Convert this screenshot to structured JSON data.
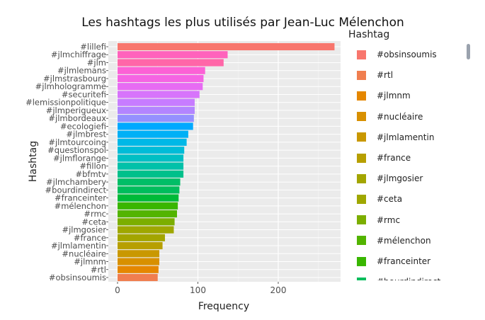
{
  "chart_data": {
    "type": "bar",
    "orientation": "horizontal",
    "title": "Les hashtags les plus utilisés par Jean-Luc Mélenchon",
    "xlabel": "Frequency",
    "ylabel": "Hashtag",
    "xlim": [
      0,
      280
    ],
    "x_ticks": [
      0,
      100,
      200
    ],
    "grid": true,
    "legend_position": "right",
    "legend_title": "Hashtag",
    "categories": [
      "#lillefi",
      "#jlmchiffrage",
      "#jlm",
      "#jlmlemans",
      "#jlmstrasbourg",
      "#jlmhologramme",
      "#securitefi",
      "#lemissionpolitique",
      "#jlmperigueux",
      "#jlmbordeaux",
      "#ecologiefi",
      "#jlmbrest",
      "#jlmtourcoing",
      "#questionspol",
      "#jlmflorange",
      "#fillon",
      "#bfmtv",
      "#jlmchambery",
      "#bourdindirect",
      "#franceinter",
      "#mélenchon",
      "#rmc",
      "#ceta",
      "#jlmgosier",
      "#france",
      "#jlmlamentin",
      "#nucléaire",
      "#jlmnm",
      "#rtl",
      "#obsinsoumis"
    ],
    "values": [
      270,
      137,
      132,
      109,
      107,
      106,
      102,
      96,
      96,
      95,
      94,
      88,
      86,
      83,
      82,
      82,
      82,
      78,
      77,
      76,
      75,
      74,
      71,
      70,
      59,
      56,
      52,
      52,
      51,
      50
    ],
    "colors": [
      "#F8766D",
      "#FF62BC",
      "#FF66A8",
      "#FC61D5",
      "#F564E3",
      "#E76BF3",
      "#D774FB",
      "#C77CFF",
      "#B385FF",
      "#9590FF",
      "#00A9FF",
      "#00B0F6",
      "#00B8E7",
      "#00BCD8",
      "#00BFC4",
      "#00C1A9",
      "#00C08B",
      "#00BE67",
      "#00BD5C",
      "#00BA38",
      "#39B600",
      "#53B400",
      "#7CAE00",
      "#9FA700",
      "#A3A500",
      "#B79F00",
      "#C99800",
      "#D89000",
      "#E58700",
      "#F07E4F"
    ],
    "legend": [
      {
        "label": "#obsinsoumis",
        "color": "#F8766D"
      },
      {
        "label": "#rtl",
        "color": "#F07E4F"
      },
      {
        "label": "#jlmnm",
        "color": "#E58700"
      },
      {
        "label": "#nucléaire",
        "color": "#D89000"
      },
      {
        "label": "#jlmlamentin",
        "color": "#C99800"
      },
      {
        "label": "#france",
        "color": "#B79F00"
      },
      {
        "label": "#jlmgosier",
        "color": "#A3A500"
      },
      {
        "label": "#ceta",
        "color": "#9FA700"
      },
      {
        "label": "#rmc",
        "color": "#7CAE00"
      },
      {
        "label": "#mélenchon",
        "color": "#53B400"
      },
      {
        "label": "#franceinter",
        "color": "#39B600"
      },
      {
        "label": "#bourdindirect",
        "color": "#00BD5C"
      }
    ]
  }
}
